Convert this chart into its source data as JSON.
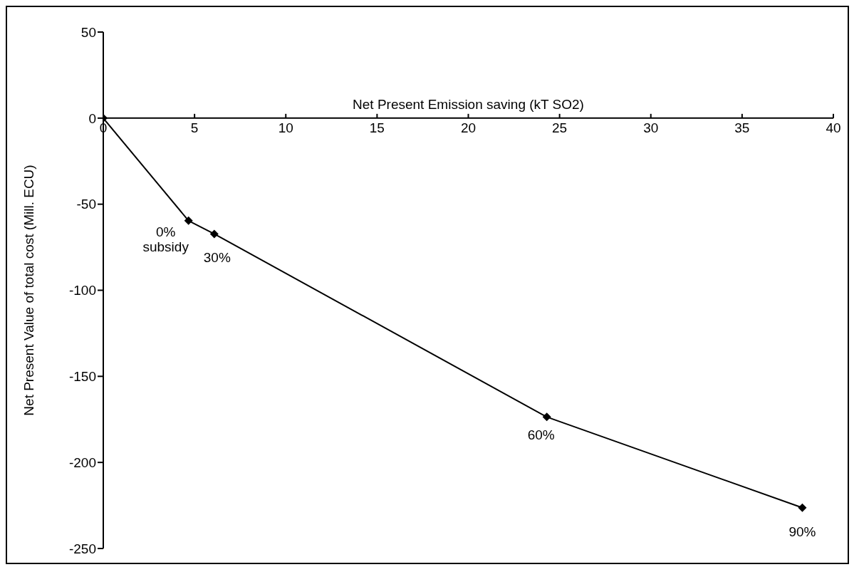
{
  "chart_data": {
    "type": "line",
    "xlabel": "Net Present Emission saving (kT SO2)",
    "ylabel": "Net Present Value of total cost (Mill. ECU)",
    "x": [
      0,
      4.67,
      6.08,
      24.3,
      38.3
    ],
    "series": [
      {
        "color": "#000000",
        "values": [
          0,
          -59.6,
          -67.3,
          -173.6,
          -226.3
        ]
      }
    ],
    "xlim": [
      0,
      40
    ],
    "xticks": [
      0,
      5,
      10,
      15,
      20,
      25,
      30,
      35,
      40
    ],
    "ylim": [
      -250,
      50
    ],
    "yticks": [
      -250,
      -200,
      -150,
      -100,
      -50,
      0,
      50
    ],
    "grid": false,
    "legend": false,
    "marker": "diamond",
    "line_style": "solid",
    "annotations": [
      {
        "text": "0% subsidy",
        "x": 4.67,
        "y": -59.6
      },
      {
        "text": "30%",
        "x": 6.08,
        "y": -67.3
      },
      {
        "text": "60%",
        "x": 24.3,
        "y": -173.6
      },
      {
        "text": "90%",
        "x": 38.3,
        "y": -226.3
      }
    ]
  }
}
